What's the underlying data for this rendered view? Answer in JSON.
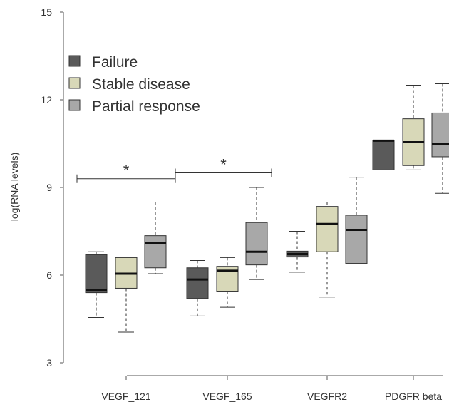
{
  "chart_data": {
    "type": "box",
    "title": "",
    "xlabel": "",
    "ylabel": "log(RNA levels)",
    "ylim": [
      3,
      15
    ],
    "yticks": [
      "3",
      "6",
      "9",
      "12",
      "15"
    ],
    "categories": [
      "VEGF_121",
      "VEGF_165",
      "VEGFR2",
      "PDGFR beta"
    ],
    "grid": false,
    "legend_position": "top-left",
    "series": [
      {
        "name": "Failure",
        "color": "#5a5a5a",
        "boxes": [
          {
            "lo": 4.55,
            "q1": 5.4,
            "median": 5.5,
            "q3": 6.7,
            "hi": 6.8
          },
          {
            "lo": 4.6,
            "q1": 5.2,
            "median": 5.85,
            "q3": 6.25,
            "hi": 6.5
          },
          {
            "lo": 6.1,
            "q1": 6.62,
            "median": 6.72,
            "q3": 6.82,
            "hi": 7.5
          },
          {
            "lo": 9.6,
            "q1": 9.6,
            "median": 10.6,
            "q3": 10.6,
            "hi": 10.6
          }
        ]
      },
      {
        "name": "Stable disease",
        "color": "#d8d8b8",
        "boxes": [
          {
            "lo": 4.05,
            "q1": 5.55,
            "median": 6.05,
            "q3": 6.6,
            "hi": 6.6
          },
          {
            "lo": 4.9,
            "q1": 5.45,
            "median": 6.15,
            "q3": 6.3,
            "hi": 6.6
          },
          {
            "lo": 5.25,
            "q1": 6.8,
            "median": 7.75,
            "q3": 8.35,
            "hi": 8.5
          },
          {
            "lo": 9.6,
            "q1": 9.75,
            "median": 10.55,
            "q3": 11.35,
            "hi": 12.5
          }
        ]
      },
      {
        "name": "Partial response",
        "color": "#a8a8a8",
        "boxes": [
          {
            "lo": 6.05,
            "q1": 6.25,
            "median": 7.1,
            "q3": 7.35,
            "hi": 8.5
          },
          {
            "lo": 5.85,
            "q1": 6.35,
            "median": 6.8,
            "q3": 7.8,
            "hi": 9.0
          },
          {
            "lo": 6.4,
            "q1": 6.4,
            "median": 7.55,
            "q3": 8.05,
            "hi": 9.35
          },
          {
            "lo": 8.8,
            "q1": 10.05,
            "median": 10.5,
            "q3": 11.55,
            "hi": 12.55
          }
        ]
      }
    ],
    "annotations": [
      {
        "text": "*",
        "from_category": "VEGF_121",
        "to_category": "VEGF_165",
        "y": 9.3
      },
      {
        "text": "*",
        "from_category": "VEGF_165",
        "to_category": "VEGFR2",
        "y": 9.5
      }
    ]
  }
}
